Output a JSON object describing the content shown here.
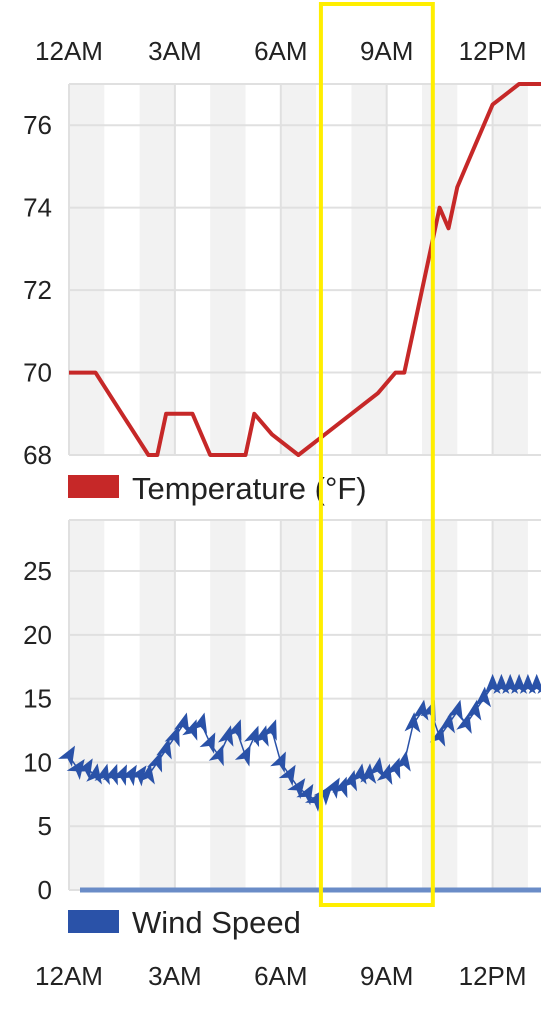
{
  "chart_data": [
    {
      "type": "line",
      "series": [
        {
          "name": "Temperature (°F)",
          "color": "#c62828",
          "x": [
            0.0,
            0.75,
            1.5,
            2.25,
            2.5,
            2.75,
            3.5,
            4.0,
            4.25,
            5.0,
            5.25,
            5.75,
            6.5,
            7.25,
            8.0,
            8.75,
            9.25,
            9.5,
            9.75,
            10.0,
            10.5,
            10.75,
            11.0,
            11.25,
            11.5,
            12.0,
            12.75,
            13.5
          ],
          "values": [
            70,
            70,
            69,
            68,
            68,
            69,
            69,
            68,
            68,
            68,
            69,
            68.5,
            68,
            68.5,
            69,
            69.5,
            70,
            70,
            71,
            72,
            74,
            73.5,
            74.5,
            75,
            75.5,
            76.5,
            77,
            77
          ]
        }
      ],
      "x_ticks": [
        "12AM",
        "3AM",
        "6AM",
        "9AM",
        "12PM"
      ],
      "xlim": [
        0,
        13.5
      ],
      "y_ticks": [
        "68",
        "70",
        "72",
        "74",
        "76"
      ],
      "ylim": [
        68,
        77
      ],
      "grid": true,
      "legend": "bottom-left"
    },
    {
      "type": "line",
      "series": [
        {
          "name": "Wind Speed",
          "color": "#2a52a8",
          "x": [
            0.0,
            0.25,
            0.5,
            0.75,
            1.0,
            1.25,
            1.5,
            1.75,
            2.0,
            2.25,
            2.5,
            2.75,
            3.0,
            3.25,
            3.5,
            3.75,
            4.0,
            4.25,
            4.5,
            4.75,
            5.0,
            5.25,
            5.5,
            5.75,
            6.0,
            6.25,
            6.5,
            6.75,
            7.0,
            7.25,
            7.5,
            7.75,
            8.0,
            8.25,
            8.5,
            8.75,
            9.0,
            9.25,
            9.5,
            9.75,
            10.0,
            10.25,
            10.5,
            10.75,
            11.0,
            11.25,
            11.5,
            11.75,
            12.0,
            12.25,
            12.5,
            12.75,
            13.0,
            13.25,
            13.5
          ],
          "values": [
            10.5,
            9.5,
            9.5,
            9,
            9,
            9,
            9,
            9,
            9,
            9,
            10,
            11,
            12,
            13,
            12.5,
            13,
            11.5,
            10.5,
            12,
            12.5,
            10.5,
            12,
            12,
            12.5,
            10,
            9,
            8,
            7.5,
            7,
            7.5,
            8,
            8,
            8.5,
            9,
            9,
            9.5,
            9,
            9.5,
            10,
            13,
            14,
            14,
            12,
            13,
            14,
            13,
            14,
            15,
            16,
            16,
            16,
            16,
            16,
            16,
            16
          ],
          "directions_deg": [
            30,
            35,
            30,
            10,
            15,
            20,
            25,
            30,
            35,
            10,
            20,
            15,
            20,
            15,
            20,
            15,
            25,
            20,
            15,
            20,
            25,
            20,
            15,
            20,
            25,
            30,
            35,
            30,
            35,
            40,
            30,
            20,
            15,
            10,
            5,
            10,
            15,
            20,
            10,
            5,
            10,
            20,
            15,
            10,
            15,
            15,
            10,
            5,
            0,
            0,
            0,
            0,
            0,
            0,
            0
          ]
        }
      ],
      "x_ticks": [
        "12AM",
        "3AM",
        "6AM",
        "9AM",
        "12PM"
      ],
      "xlim": [
        0,
        13.5
      ],
      "y_ticks": [
        "0",
        "5",
        "10",
        "15",
        "20",
        "25"
      ],
      "ylim": [
        0,
        29
      ],
      "grid": true,
      "legend": "bottom-left"
    }
  ],
  "highlight": {
    "color": "#ffee00",
    "xrange": [
      7.25,
      10.25
    ]
  }
}
